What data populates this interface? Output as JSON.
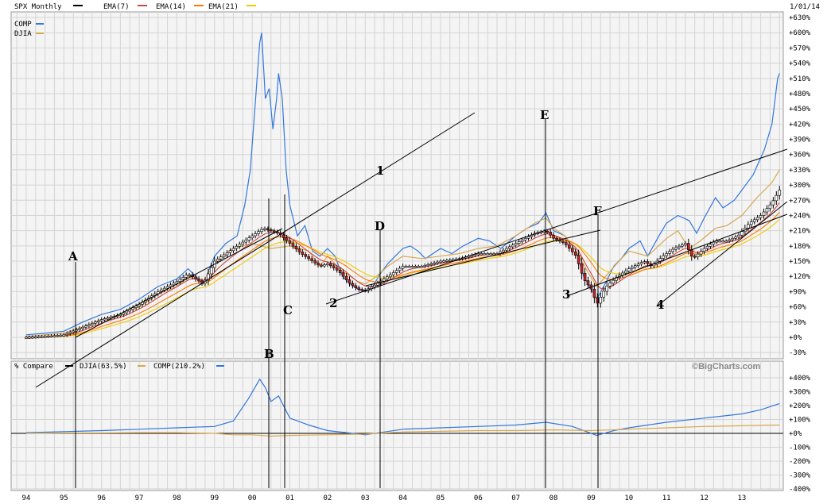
{
  "chart_data": {
    "type": "line",
    "header": {
      "symbol": "SPX Monthly",
      "indicators": [
        {
          "label": "EMA(7)",
          "color": "#cc4444"
        },
        {
          "label": "EMA(14)",
          "color": "#ff7700"
        },
        {
          "label": "EMA(21)",
          "color": "#eecc00"
        }
      ],
      "date": "1/01/14"
    },
    "legend": [
      {
        "label": "COMP",
        "color": "#3377dd"
      },
      {
        "label": "DJIA",
        "color": "#d8a850"
      }
    ],
    "main_yticks": [
      "+630%",
      "+600%",
      "+570%",
      "+540%",
      "+510%",
      "+480%",
      "+450%",
      "+420%",
      "+390%",
      "+360%",
      "+330%",
      "+300%",
      "+270%",
      "+240%",
      "+210%",
      "+180%",
      "+150%",
      "+120%",
      "+90%",
      "+60%",
      "+30%",
      "+0%",
      "-30%"
    ],
    "lower_yticks": [
      "+400%",
      "+300%",
      "+200%",
      "+100%",
      "+0%",
      "-100%",
      "-200%",
      "-300%",
      "-400%"
    ],
    "xticks": [
      "94",
      "95",
      "96",
      "97",
      "98",
      "99",
      "00",
      "01",
      "02",
      "03",
      "04",
      "05",
      "06",
      "07",
      "08",
      "09",
      "10",
      "11",
      "12",
      "13"
    ],
    "watermark": "©BigCharts.com",
    "lower_panel": {
      "title": "% Compare",
      "entries": [
        {
          "label": "DJIA(63.5%)",
          "color": "#d8a850"
        },
        {
          "label": "COMP(210.2%)",
          "color": "#3377dd"
        }
      ],
      "zero_line": "0%"
    },
    "series": [
      {
        "name": "COMP",
        "color": "#3377dd",
        "points": [
          [
            1994.0,
            5
          ],
          [
            1994.5,
            8
          ],
          [
            1995.0,
            12
          ],
          [
            1995.5,
            30
          ],
          [
            1996.0,
            45
          ],
          [
            1996.5,
            55
          ],
          [
            1997.0,
            75
          ],
          [
            1997.5,
            100
          ],
          [
            1998.0,
            115
          ],
          [
            1998.3,
            135
          ],
          [
            1998.7,
            105
          ],
          [
            1999.0,
            160
          ],
          [
            1999.3,
            185
          ],
          [
            1999.6,
            200
          ],
          [
            1999.8,
            260
          ],
          [
            1999.95,
            330
          ],
          [
            2000.1,
            480
          ],
          [
            2000.2,
            580
          ],
          [
            2000.25,
            600
          ],
          [
            2000.35,
            470
          ],
          [
            2000.45,
            490
          ],
          [
            2000.55,
            410
          ],
          [
            2000.65,
            470
          ],
          [
            2000.7,
            520
          ],
          [
            2000.8,
            470
          ],
          [
            2000.9,
            330
          ],
          [
            2001.0,
            260
          ],
          [
            2001.2,
            200
          ],
          [
            2001.4,
            220
          ],
          [
            2001.6,
            170
          ],
          [
            2001.8,
            160
          ],
          [
            2002.0,
            175
          ],
          [
            2002.2,
            160
          ],
          [
            2002.4,
            120
          ],
          [
            2002.6,
            105
          ],
          [
            2002.8,
            95
          ],
          [
            2003.0,
            90
          ],
          [
            2003.2,
            100
          ],
          [
            2003.4,
            125
          ],
          [
            2003.6,
            145
          ],
          [
            2003.8,
            160
          ],
          [
            2004.0,
            175
          ],
          [
            2004.2,
            180
          ],
          [
            2004.4,
            170
          ],
          [
            2004.6,
            155
          ],
          [
            2004.8,
            165
          ],
          [
            2005.0,
            175
          ],
          [
            2005.3,
            165
          ],
          [
            2005.6,
            180
          ],
          [
            2006.0,
            195
          ],
          [
            2006.3,
            190
          ],
          [
            2006.6,
            175
          ],
          [
            2007.0,
            200
          ],
          [
            2007.3,
            215
          ],
          [
            2007.6,
            225
          ],
          [
            2007.8,
            245
          ],
          [
            2008.0,
            210
          ],
          [
            2008.3,
            200
          ],
          [
            2008.6,
            170
          ],
          [
            2008.8,
            120
          ],
          [
            2009.0,
            95
          ],
          [
            2009.15,
            75
          ],
          [
            2009.4,
            110
          ],
          [
            2009.6,
            140
          ],
          [
            2009.8,
            155
          ],
          [
            2010.0,
            175
          ],
          [
            2010.3,
            190
          ],
          [
            2010.5,
            160
          ],
          [
            2010.8,
            200
          ],
          [
            2011.0,
            225
          ],
          [
            2011.3,
            240
          ],
          [
            2011.6,
            230
          ],
          [
            2011.8,
            205
          ],
          [
            2012.0,
            235
          ],
          [
            2012.3,
            275
          ],
          [
            2012.5,
            255
          ],
          [
            2012.8,
            270
          ],
          [
            2013.0,
            290
          ],
          [
            2013.3,
            320
          ],
          [
            2013.6,
            370
          ],
          [
            2013.8,
            420
          ],
          [
            2013.95,
            510
          ],
          [
            2014.0,
            520
          ]
        ]
      },
      {
        "name": "DJIA",
        "color": "#d8a850",
        "points": [
          [
            1994.0,
            2
          ],
          [
            1994.5,
            5
          ],
          [
            1995.0,
            8
          ],
          [
            1995.5,
            20
          ],
          [
            1996.0,
            35
          ],
          [
            1996.5,
            45
          ],
          [
            1997.0,
            60
          ],
          [
            1997.5,
            85
          ],
          [
            1998.0,
            100
          ],
          [
            1998.3,
            120
          ],
          [
            1998.7,
            110
          ],
          [
            1999.0,
            145
          ],
          [
            1999.5,
            175
          ],
          [
            2000.0,
            185
          ],
          [
            2000.5,
            175
          ],
          [
            2001.0,
            180
          ],
          [
            2001.5,
            170
          ],
          [
            2001.8,
            140
          ],
          [
            2002.0,
            160
          ],
          [
            2002.4,
            130
          ],
          [
            2002.8,
            110
          ],
          [
            2003.0,
            105
          ],
          [
            2003.3,
            120
          ],
          [
            2003.6,
            140
          ],
          [
            2004.0,
            160
          ],
          [
            2004.5,
            155
          ],
          [
            2005.0,
            160
          ],
          [
            2005.5,
            165
          ],
          [
            2006.0,
            175
          ],
          [
            2006.5,
            180
          ],
          [
            2007.0,
            200
          ],
          [
            2007.5,
            225
          ],
          [
            2007.8,
            235
          ],
          [
            2008.0,
            215
          ],
          [
            2008.3,
            200
          ],
          [
            2008.6,
            170
          ],
          [
            2008.9,
            130
          ],
          [
            2009.15,
            100
          ],
          [
            2009.5,
            130
          ],
          [
            2009.8,
            155
          ],
          [
            2010.0,
            170
          ],
          [
            2010.5,
            160
          ],
          [
            2011.0,
            195
          ],
          [
            2011.3,
            210
          ],
          [
            2011.6,
            175
          ],
          [
            2011.9,
            190
          ],
          [
            2012.3,
            215
          ],
          [
            2012.6,
            220
          ],
          [
            2013.0,
            240
          ],
          [
            2013.4,
            275
          ],
          [
            2013.8,
            305
          ],
          [
            2014.0,
            330
          ]
        ]
      },
      {
        "name": "SPX",
        "color": "#000000",
        "points": [
          [
            1994.0,
            0
          ],
          [
            1994.5,
            2
          ],
          [
            1995.0,
            5
          ],
          [
            1995.5,
            20
          ],
          [
            1996.0,
            35
          ],
          [
            1996.5,
            45
          ],
          [
            1997.0,
            65
          ],
          [
            1997.5,
            90
          ],
          [
            1998.0,
            110
          ],
          [
            1998.3,
            125
          ],
          [
            1998.7,
            105
          ],
          [
            1999.0,
            150
          ],
          [
            1999.5,
            175
          ],
          [
            2000.0,
            200
          ],
          [
            2000.3,
            215
          ],
          [
            2000.7,
            205
          ],
          [
            2001.0,
            185
          ],
          [
            2001.3,
            165
          ],
          [
            2001.6,
            150
          ],
          [
            2001.8,
            140
          ],
          [
            2002.0,
            145
          ],
          [
            2002.3,
            130
          ],
          [
            2002.6,
            105
          ],
          [
            2002.8,
            95
          ],
          [
            2003.0,
            92
          ],
          [
            2003.3,
            105
          ],
          [
            2003.6,
            120
          ],
          [
            2004.0,
            140
          ],
          [
            2004.5,
            140
          ],
          [
            2005.0,
            150
          ],
          [
            2005.5,
            155
          ],
          [
            2006.0,
            165
          ],
          [
            2006.5,
            165
          ],
          [
            2007.0,
            185
          ],
          [
            2007.5,
            205
          ],
          [
            2007.8,
            210
          ],
          [
            2008.0,
            195
          ],
          [
            2008.3,
            185
          ],
          [
            2008.6,
            160
          ],
          [
            2008.8,
            115
          ],
          [
            2009.0,
            95
          ],
          [
            2009.15,
            65
          ],
          [
            2009.4,
            100
          ],
          [
            2009.7,
            120
          ],
          [
            2010.0,
            135
          ],
          [
            2010.4,
            150
          ],
          [
            2010.6,
            140
          ],
          [
            2010.9,
            160
          ],
          [
            2011.2,
            175
          ],
          [
            2011.5,
            185
          ],
          [
            2011.7,
            155
          ],
          [
            2012.0,
            175
          ],
          [
            2012.3,
            190
          ],
          [
            2012.6,
            190
          ],
          [
            2012.9,
            200
          ],
          [
            2013.2,
            225
          ],
          [
            2013.5,
            240
          ],
          [
            2013.8,
            265
          ],
          [
            2014.0,
            290
          ]
        ]
      }
    ],
    "compare_series": [
      {
        "name": "COMP",
        "color": "#3377dd",
        "points": [
          [
            1994.0,
            5
          ],
          [
            1995.0,
            12
          ],
          [
            1996.0,
            20
          ],
          [
            1997.0,
            30
          ],
          [
            1998.0,
            40
          ],
          [
            1999.0,
            50
          ],
          [
            1999.5,
            90
          ],
          [
            1999.9,
            250
          ],
          [
            2000.2,
            390
          ],
          [
            2000.35,
            330
          ],
          [
            2000.5,
            230
          ],
          [
            2000.7,
            270
          ],
          [
            2001.0,
            110
          ],
          [
            2001.5,
            60
          ],
          [
            2002.0,
            20
          ],
          [
            2002.5,
            5
          ],
          [
            2003.0,
            -10
          ],
          [
            2003.5,
            10
          ],
          [
            2004.0,
            30
          ],
          [
            2005.0,
            40
          ],
          [
            2006.0,
            50
          ],
          [
            2007.0,
            60
          ],
          [
            2007.8,
            80
          ],
          [
            2008.5,
            50
          ],
          [
            2009.15,
            -15
          ],
          [
            2009.6,
            20
          ],
          [
            2010.0,
            40
          ],
          [
            2011.0,
            80
          ],
          [
            2012.0,
            110
          ],
          [
            2013.0,
            140
          ],
          [
            2013.5,
            170
          ],
          [
            2014.0,
            215
          ]
        ]
      },
      {
        "name": "DJIA",
        "color": "#d8a850",
        "points": [
          [
            1994.0,
            0
          ],
          [
            1995.0,
            2
          ],
          [
            1996.0,
            3
          ],
          [
            1997.0,
            5
          ],
          [
            1998.0,
            5
          ],
          [
            1999.0,
            0
          ],
          [
            1999.5,
            -10
          ],
          [
            2000.0,
            -10
          ],
          [
            2000.5,
            -20
          ],
          [
            2001.0,
            -15
          ],
          [
            2002.0,
            -10
          ],
          [
            2003.0,
            -5
          ],
          [
            2004.0,
            10
          ],
          [
            2005.0,
            15
          ],
          [
            2006.0,
            20
          ],
          [
            2007.0,
            20
          ],
          [
            2008.0,
            25
          ],
          [
            2009.0,
            20
          ],
          [
            2010.0,
            30
          ],
          [
            2011.0,
            40
          ],
          [
            2012.0,
            50
          ],
          [
            2013.0,
            55
          ],
          [
            2014.0,
            60
          ]
        ]
      }
    ],
    "annotations": [
      "A",
      "B",
      "C",
      "D",
      "E",
      "F",
      "1",
      "2",
      "3",
      "4"
    ]
  }
}
